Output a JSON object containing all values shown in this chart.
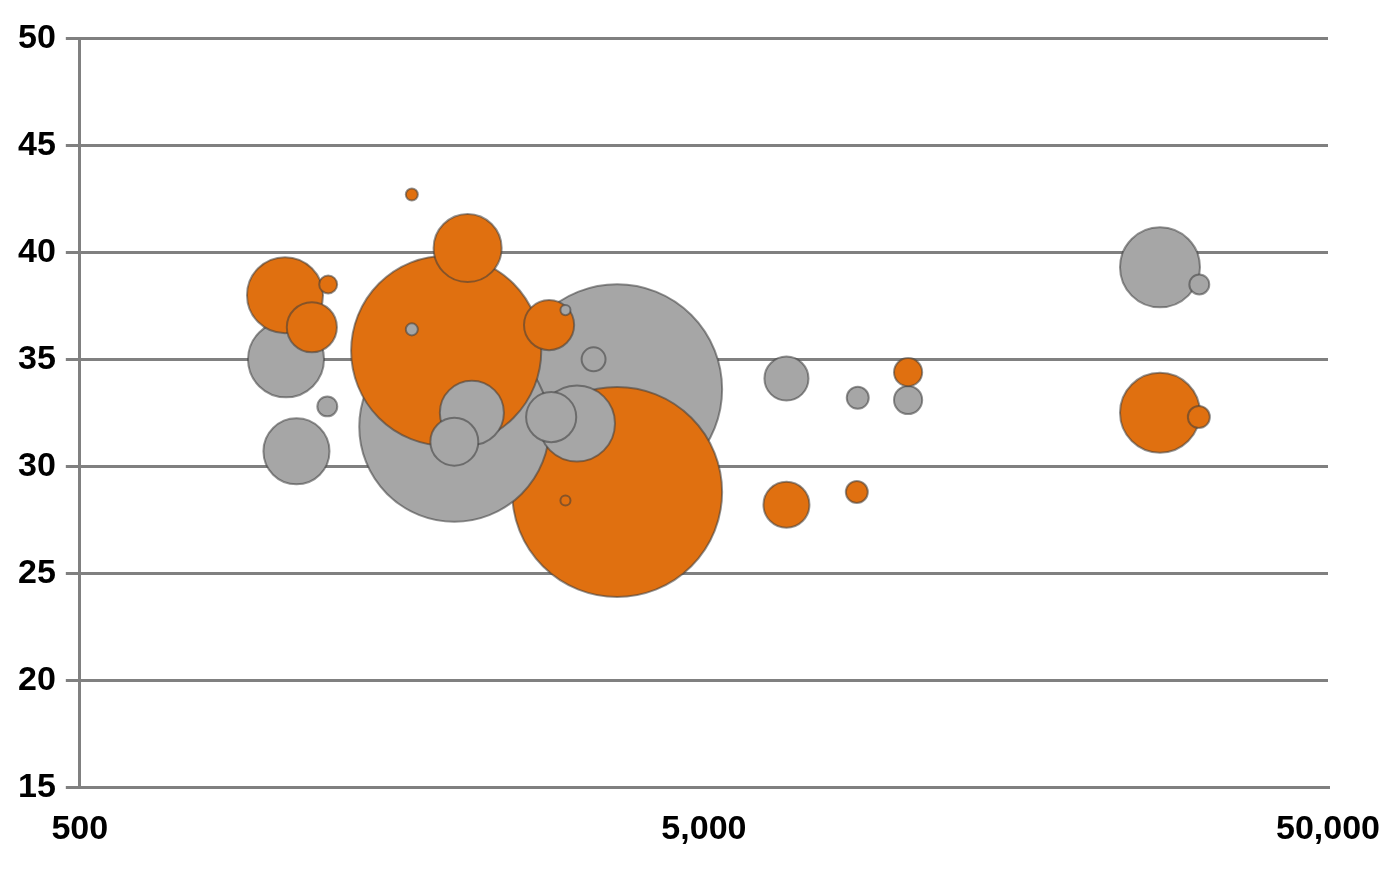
{
  "chart_data": {
    "type": "bubble",
    "relative": false,
    "log": "x",
    "grid": "y",
    "legend": false,
    "xlim": [
      500,
      50000
    ],
    "xticks": [
      {
        "value": 500,
        "label": "500"
      },
      {
        "value": 5000,
        "label": "5,000"
      },
      {
        "value": 50000,
        "label": "50,000"
      }
    ],
    "ylim": [
      15,
      50
    ],
    "yticks": [
      15,
      20,
      25,
      30,
      35,
      40,
      45,
      50
    ],
    "series": [
      {
        "color": "#e07010",
        "x": [
          3630,
          1932,
          26900,
          1066,
          2091,
          1177,
          2824,
          6780,
          10620,
          8790,
          31050,
          1250,
          1702,
          3000
        ],
        "values": [
          28.8,
          35.4,
          32.5,
          38.0,
          40.2,
          36.5,
          36.6,
          28.2,
          34.4,
          28.8,
          32.3,
          38.5,
          42.7,
          28.4
        ],
        "sizes": [
          1,
          0.82,
          0.145,
          0.131,
          0.105,
          0.057,
          0.057,
          0.048,
          0.018,
          0.011,
          0.011,
          0.0073,
          0.0033,
          0.0023
        ]
      },
      {
        "color": "#a6a6a6",
        "x": [
          3630,
          1991,
          26900,
          1070,
          3130,
          1112,
          2124,
          2846,
          1991,
          6780,
          10620,
          3328,
          8820,
          1246,
          31100,
          1702,
          3000
        ],
        "values": [
          33.6,
          31.85,
          39.3,
          35.0,
          32.0,
          30.7,
          32.5,
          32.3,
          31.15,
          34.1,
          33.1,
          35.0,
          33.2,
          32.8,
          38.5,
          36.4,
          37.3
        ],
        "sizes": [
          1,
          0.82,
          0.145,
          0.131,
          0.131,
          0.099,
          0.093,
          0.057,
          0.052,
          0.044,
          0.018,
          0.013,
          0.011,
          0.009,
          0.009,
          0.0033,
          0.0023
        ]
      }
    ]
  }
}
